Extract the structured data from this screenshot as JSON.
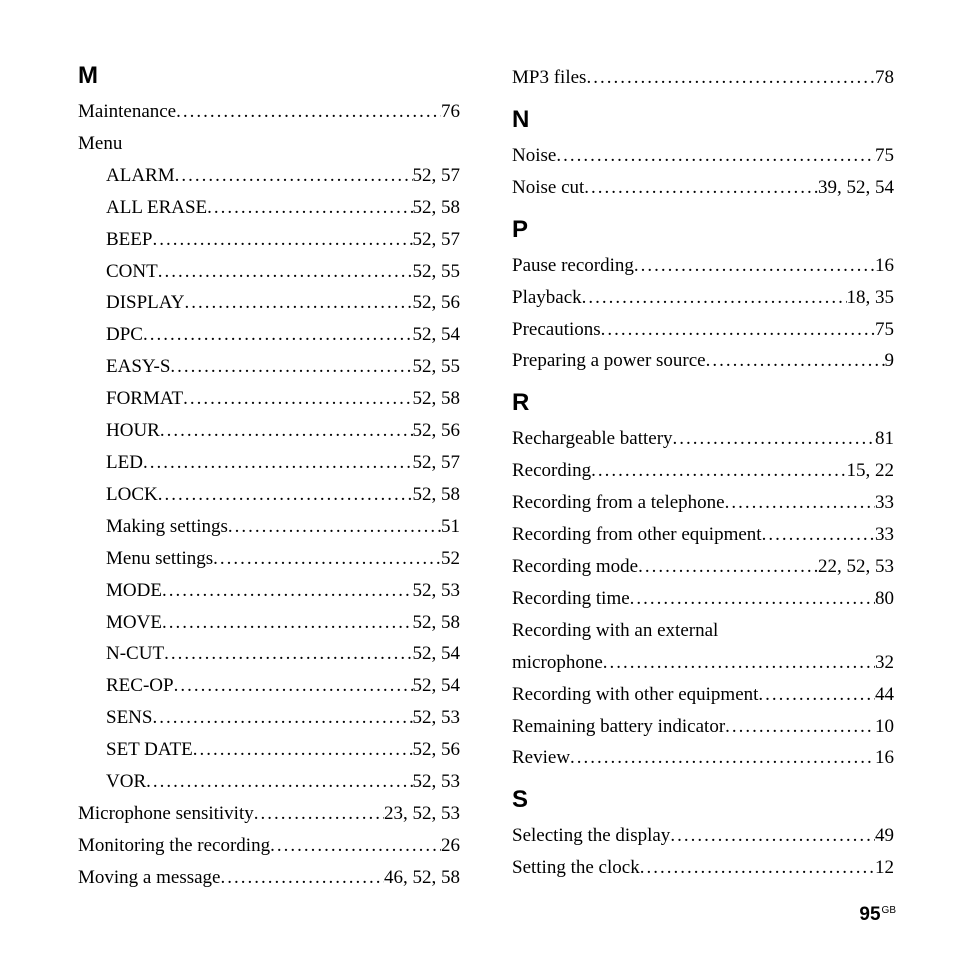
{
  "page_number": "95",
  "page_suffix": "GB",
  "left_column": [
    {
      "type": "letter",
      "text": "M"
    },
    {
      "type": "entry",
      "term": "Maintenance",
      "pages": "76",
      "indent": 0
    },
    {
      "type": "entry",
      "term": "Menu",
      "pages": "",
      "indent": 0,
      "noline": true
    },
    {
      "type": "entry",
      "term": "ALARM",
      "pages": "52, 57",
      "indent": 1
    },
    {
      "type": "entry",
      "term": "ALL ERASE",
      "pages": "52, 58",
      "indent": 1
    },
    {
      "type": "entry",
      "term": "BEEP",
      "pages": "52, 57",
      "indent": 1
    },
    {
      "type": "entry",
      "term": "CONT",
      "pages": "52, 55",
      "indent": 1
    },
    {
      "type": "entry",
      "term": "DISPLAY",
      "pages": "52, 56",
      "indent": 1
    },
    {
      "type": "entry",
      "term": "DPC",
      "pages": "52, 54",
      "indent": 1
    },
    {
      "type": "entry",
      "term": "EASY-S",
      "pages": "52, 55",
      "indent": 1
    },
    {
      "type": "entry",
      "term": "FORMAT",
      "pages": "52, 58",
      "indent": 1
    },
    {
      "type": "entry",
      "term": "HOUR",
      "pages": "52, 56",
      "indent": 1
    },
    {
      "type": "entry",
      "term": "LED",
      "pages": "52, 57",
      "indent": 1
    },
    {
      "type": "entry",
      "term": "LOCK",
      "pages": "52, 58",
      "indent": 1
    },
    {
      "type": "entry",
      "term": "Making settings",
      "pages": "51",
      "indent": 1
    },
    {
      "type": "entry",
      "term": "Menu settings",
      "pages": "52",
      "indent": 1
    },
    {
      "type": "entry",
      "term": "MODE",
      "pages": "52, 53",
      "indent": 1
    },
    {
      "type": "entry",
      "term": "MOVE",
      "pages": "52, 58",
      "indent": 1
    },
    {
      "type": "entry",
      "term": "N-CUT",
      "pages": "52, 54",
      "indent": 1
    },
    {
      "type": "entry",
      "term": "REC-OP",
      "pages": "52, 54",
      "indent": 1
    },
    {
      "type": "entry",
      "term": "SENS",
      "pages": "52, 53",
      "indent": 1
    },
    {
      "type": "entry",
      "term": "SET DATE",
      "pages": "52, 56",
      "indent": 1
    },
    {
      "type": "entry",
      "term": "VOR",
      "pages": "52, 53",
      "indent": 1
    },
    {
      "type": "entry",
      "term": "Microphone sensitivity",
      "pages": "23, 52, 53",
      "indent": 0
    },
    {
      "type": "entry",
      "term": "Monitoring the recording",
      "pages": "26",
      "indent": 0
    },
    {
      "type": "entry",
      "term": "Moving a message",
      "pages": "46, 52, 58",
      "indent": 0
    }
  ],
  "right_column": [
    {
      "type": "entry",
      "term": "MP3 files",
      "pages": "78",
      "indent": 0
    },
    {
      "type": "letter",
      "text": "N"
    },
    {
      "type": "entry",
      "term": "Noise",
      "pages": "75",
      "indent": 0
    },
    {
      "type": "entry",
      "term": "Noise cut",
      "pages": "39, 52, 54",
      "indent": 0
    },
    {
      "type": "letter",
      "text": "P"
    },
    {
      "type": "entry",
      "term": "Pause recording",
      "pages": "16",
      "indent": 0
    },
    {
      "type": "entry",
      "term": "Playback",
      "pages": "18, 35",
      "indent": 0
    },
    {
      "type": "entry",
      "term": "Precautions",
      "pages": "75",
      "indent": 0
    },
    {
      "type": "entry",
      "term": "Preparing a power source",
      "pages": "9",
      "indent": 0
    },
    {
      "type": "letter",
      "text": "R"
    },
    {
      "type": "entry",
      "term": "Rechargeable battery",
      "pages": "81",
      "indent": 0
    },
    {
      "type": "entry",
      "term": "Recording",
      "pages": "15, 22",
      "indent": 0
    },
    {
      "type": "entry",
      "term": "Recording from a telephone",
      "pages": "33",
      "indent": 0
    },
    {
      "type": "entry",
      "term": "Recording from other equipment",
      "pages": "33",
      "indent": 0
    },
    {
      "type": "entry",
      "term": "Recording mode",
      "pages": "22, 52, 53",
      "indent": 0
    },
    {
      "type": "entry",
      "term": "Recording time",
      "pages": "80",
      "indent": 0
    },
    {
      "type": "entry",
      "term": "Recording with an external",
      "pages": "",
      "indent": 0,
      "noline": true
    },
    {
      "type": "entry",
      "term": "microphone",
      "pages": "32",
      "indent": 0
    },
    {
      "type": "entry",
      "term": "Recording with other equipment",
      "pages": "44",
      "indent": 0
    },
    {
      "type": "entry",
      "term": "Remaining battery indicator",
      "pages": "10",
      "indent": 0
    },
    {
      "type": "entry",
      "term": "Review",
      "pages": "16",
      "indent": 0
    },
    {
      "type": "letter",
      "text": "S"
    },
    {
      "type": "entry",
      "term": "Selecting the display",
      "pages": "49",
      "indent": 0
    },
    {
      "type": "entry",
      "term": "Setting the clock",
      "pages": "12",
      "indent": 0
    }
  ]
}
